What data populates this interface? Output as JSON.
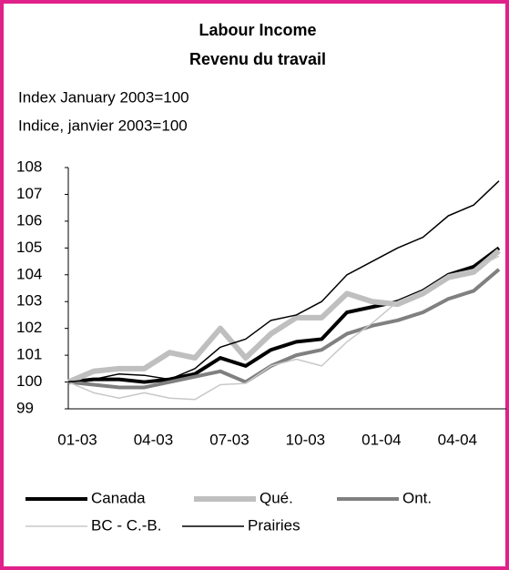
{
  "chart_data": {
    "type": "line",
    "title": "Labour Income",
    "subtitle": "Revenu du travail",
    "y_label": "Index January 2003=100",
    "y_label_fr": "Indice, janvier 2003=100",
    "categories": [
      "01-03",
      null,
      null,
      "04-03",
      null,
      null,
      "07-03",
      null,
      null,
      "10-03",
      null,
      null,
      "01-04",
      null,
      null,
      "04-04",
      null,
      null
    ],
    "ylim": [
      99,
      108
    ],
    "yticks": [
      99,
      100,
      101,
      102,
      103,
      104,
      105,
      106,
      107,
      108
    ],
    "series": [
      {
        "name": "Canada",
        "color": "#000000",
        "width": 4,
        "values": [
          100.0,
          100.1,
          100.1,
          100.0,
          100.1,
          100.3,
          100.9,
          100.6,
          101.2,
          101.5,
          101.6,
          102.6,
          102.8,
          103.0,
          103.4,
          104.0,
          104.3,
          105.0
        ]
      },
      {
        "name": "Qué.",
        "color": "#bfbfbf",
        "width": 6,
        "values": [
          100.0,
          100.4,
          100.5,
          100.5,
          101.1,
          100.9,
          102.0,
          100.9,
          101.8,
          102.4,
          102.4,
          103.3,
          103.0,
          102.9,
          103.3,
          103.9,
          104.1,
          104.9
        ]
      },
      {
        "name": "Ont.",
        "color": "#808080",
        "width": 4,
        "values": [
          100.0,
          99.9,
          99.8,
          99.8,
          100.0,
          100.2,
          100.4,
          100.0,
          100.6,
          101.0,
          101.2,
          101.8,
          102.1,
          102.3,
          102.6,
          103.1,
          103.4,
          104.2
        ]
      },
      {
        "name": "BC - C.-B.",
        "color": "#c8c8c8",
        "width": 1.5,
        "values": [
          100.0,
          99.6,
          99.4,
          99.6,
          99.4,
          99.35,
          99.9,
          99.95,
          100.6,
          100.85,
          100.6,
          101.5,
          102.2,
          103.0,
          103.4,
          104.0,
          104.2,
          104.7
        ]
      },
      {
        "name": "Prairies",
        "color": "#000000",
        "width": 1.5,
        "values": [
          100.0,
          100.1,
          100.3,
          100.25,
          100.1,
          100.5,
          101.3,
          101.6,
          102.3,
          102.5,
          103.0,
          104.0,
          104.5,
          105.0,
          105.4,
          106.2,
          106.6,
          107.5
        ]
      }
    ]
  }
}
